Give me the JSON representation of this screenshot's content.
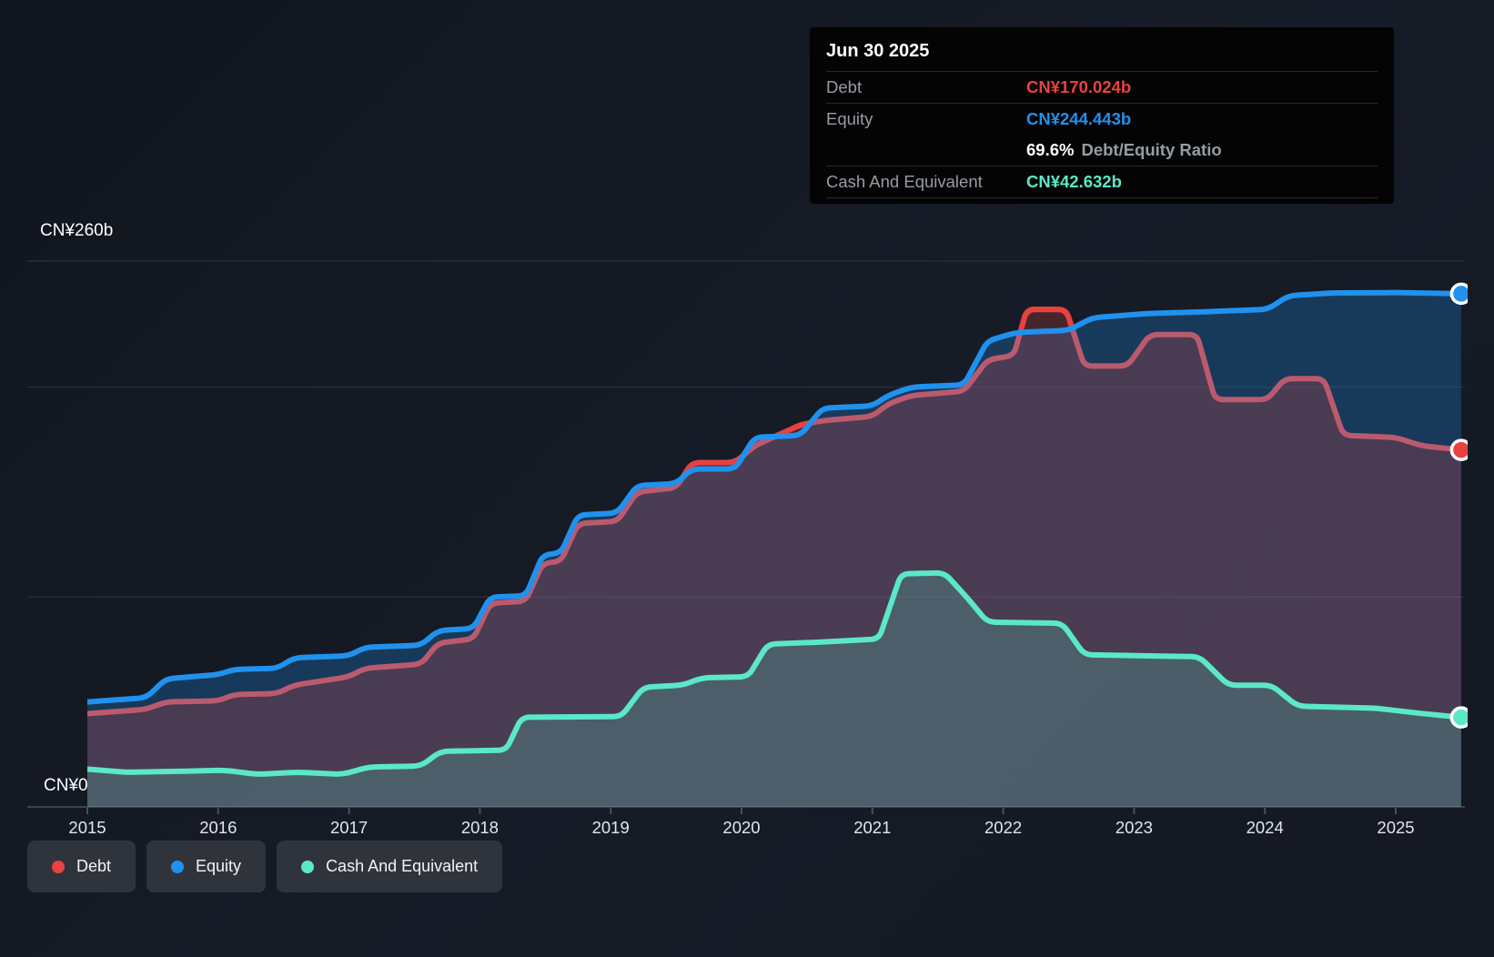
{
  "y_axis": {
    "top_label": "CN¥260b",
    "zero_label": "CN¥0"
  },
  "x_axis": {
    "years": [
      "2015",
      "2016",
      "2017",
      "2018",
      "2019",
      "2020",
      "2021",
      "2022",
      "2023",
      "2024",
      "2025"
    ]
  },
  "tooltip": {
    "date": "Jun 30 2025",
    "debt_label": "Debt",
    "debt_value": "CN¥170.024b",
    "equity_label": "Equity",
    "equity_value": "CN¥244.443b",
    "ratio_value": "69.6%",
    "ratio_label": "Debt/Equity Ratio",
    "cash_label": "Cash And Equivalent",
    "cash_value": "CN¥42.632b"
  },
  "legend": [
    {
      "label": "Debt",
      "color": "#e8433f"
    },
    {
      "label": "Equity",
      "color": "#2191ee"
    },
    {
      "label": "Cash And Equivalent",
      "color": "#5be8c8"
    }
  ],
  "colors": {
    "background": "#161c27",
    "grid": "#262d37",
    "axis": "#3d434d",
    "tick": "#4a5058",
    "axis_text": "#ffffff",
    "year_text": "#e3e7eb",
    "debt_line": "#e8413e",
    "debt_line_muted": "#bb5a6e",
    "equity_line": "#2191ee",
    "cash_line": "#5be8c8",
    "equity_fill": "rgba(32,144,234,0.27)",
    "debt_fill": "rgba(232,65,62,0.24)",
    "cash_fill": "rgba(91,232,200,0.20)"
  },
  "chart_data": {
    "type": "area",
    "title": "Debt to Equity History and Analysis",
    "currency_unit": "CN¥ billions",
    "x_range": [
      2015.0,
      2025.5
    ],
    "ylim": [
      0,
      260
    ],
    "grid_values": [
      260,
      200,
      100,
      0
    ],
    "y_tick_labels_shown": [
      "CN¥260b",
      "CN¥0"
    ],
    "legend_position": "bottom-left",
    "marker_date": "Jun 30 2025",
    "series": [
      {
        "name": "Equity",
        "final_value_b": 244.443,
        "points": [
          [
            2015.0,
            50
          ],
          [
            2015.45,
            52
          ],
          [
            2015.6,
            61
          ],
          [
            2016.0,
            63
          ],
          [
            2016.12,
            65.5
          ],
          [
            2016.45,
            66
          ],
          [
            2016.58,
            71
          ],
          [
            2017.0,
            72
          ],
          [
            2017.12,
            76
          ],
          [
            2017.55,
            77
          ],
          [
            2017.68,
            84
          ],
          [
            2017.95,
            85
          ],
          [
            2018.08,
            100
          ],
          [
            2018.35,
            100.5
          ],
          [
            2018.48,
            120
          ],
          [
            2018.62,
            121
          ],
          [
            2018.75,
            139
          ],
          [
            2019.05,
            140
          ],
          [
            2019.2,
            153
          ],
          [
            2019.5,
            154
          ],
          [
            2019.62,
            161
          ],
          [
            2019.95,
            161
          ],
          [
            2020.1,
            176
          ],
          [
            2020.45,
            177
          ],
          [
            2020.62,
            190
          ],
          [
            2021.0,
            191
          ],
          [
            2021.12,
            196
          ],
          [
            2021.3,
            200
          ],
          [
            2021.7,
            201
          ],
          [
            2021.88,
            222
          ],
          [
            2022.1,
            226
          ],
          [
            2022.5,
            227
          ],
          [
            2022.68,
            233
          ],
          [
            2023.1,
            235
          ],
          [
            2023.6,
            236
          ],
          [
            2024.02,
            237
          ],
          [
            2024.18,
            243.5
          ],
          [
            2024.5,
            244.8
          ],
          [
            2025.0,
            245
          ],
          [
            2025.5,
            244.443
          ]
        ]
      },
      {
        "name": "Debt",
        "final_value_b": 170.024,
        "points": [
          [
            2015.0,
            44.4
          ],
          [
            2015.45,
            46.5
          ],
          [
            2015.6,
            50
          ],
          [
            2016.0,
            50.5
          ],
          [
            2016.12,
            53.5
          ],
          [
            2016.45,
            54
          ],
          [
            2016.58,
            58
          ],
          [
            2017.0,
            62
          ],
          [
            2017.12,
            66
          ],
          [
            2017.55,
            68
          ],
          [
            2017.68,
            78
          ],
          [
            2017.95,
            80
          ],
          [
            2018.08,
            97
          ],
          [
            2018.35,
            98
          ],
          [
            2018.48,
            116
          ],
          [
            2018.62,
            117
          ],
          [
            2018.75,
            135
          ],
          [
            2019.05,
            136
          ],
          [
            2019.2,
            150
          ],
          [
            2019.5,
            152
          ],
          [
            2019.62,
            164
          ],
          [
            2019.95,
            164
          ],
          [
            2020.1,
            172
          ],
          [
            2020.45,
            182
          ],
          [
            2020.62,
            184
          ],
          [
            2021.0,
            186
          ],
          [
            2021.12,
            192
          ],
          [
            2021.3,
            196
          ],
          [
            2021.7,
            198
          ],
          [
            2021.88,
            213
          ],
          [
            2022.08,
            215
          ],
          [
            2022.18,
            237
          ],
          [
            2022.48,
            237
          ],
          [
            2022.62,
            210
          ],
          [
            2022.95,
            210
          ],
          [
            2023.12,
            225
          ],
          [
            2023.48,
            225
          ],
          [
            2023.62,
            194
          ],
          [
            2024.02,
            194
          ],
          [
            2024.15,
            204
          ],
          [
            2024.45,
            204
          ],
          [
            2024.6,
            177
          ],
          [
            2025.0,
            176
          ],
          [
            2025.2,
            172
          ],
          [
            2025.5,
            170.024
          ]
        ]
      },
      {
        "name": "Cash And Equivalent",
        "final_value_b": 42.632,
        "points": [
          [
            2015.0,
            18
          ],
          [
            2015.3,
            16.5
          ],
          [
            2015.75,
            17
          ],
          [
            2016.05,
            17.5
          ],
          [
            2016.3,
            15.5
          ],
          [
            2016.6,
            16.5
          ],
          [
            2016.95,
            15.5
          ],
          [
            2017.15,
            19
          ],
          [
            2017.55,
            19.5
          ],
          [
            2017.7,
            26.5
          ],
          [
            2018.2,
            27
          ],
          [
            2018.32,
            42.7
          ],
          [
            2019.08,
            43
          ],
          [
            2019.25,
            57
          ],
          [
            2019.55,
            58
          ],
          [
            2019.7,
            61.5
          ],
          [
            2020.05,
            62
          ],
          [
            2020.2,
            77.5
          ],
          [
            2020.6,
            78.5
          ],
          [
            2021.05,
            80
          ],
          [
            2021.22,
            111
          ],
          [
            2021.55,
            111.5
          ],
          [
            2021.72,
            100
          ],
          [
            2021.88,
            88
          ],
          [
            2022.45,
            87.5
          ],
          [
            2022.62,
            72.5
          ],
          [
            2023.5,
            71.5
          ],
          [
            2023.72,
            58
          ],
          [
            2024.05,
            58
          ],
          [
            2024.25,
            48
          ],
          [
            2024.85,
            47
          ],
          [
            2025.2,
            44.5
          ],
          [
            2025.5,
            42.632
          ]
        ]
      }
    ]
  }
}
